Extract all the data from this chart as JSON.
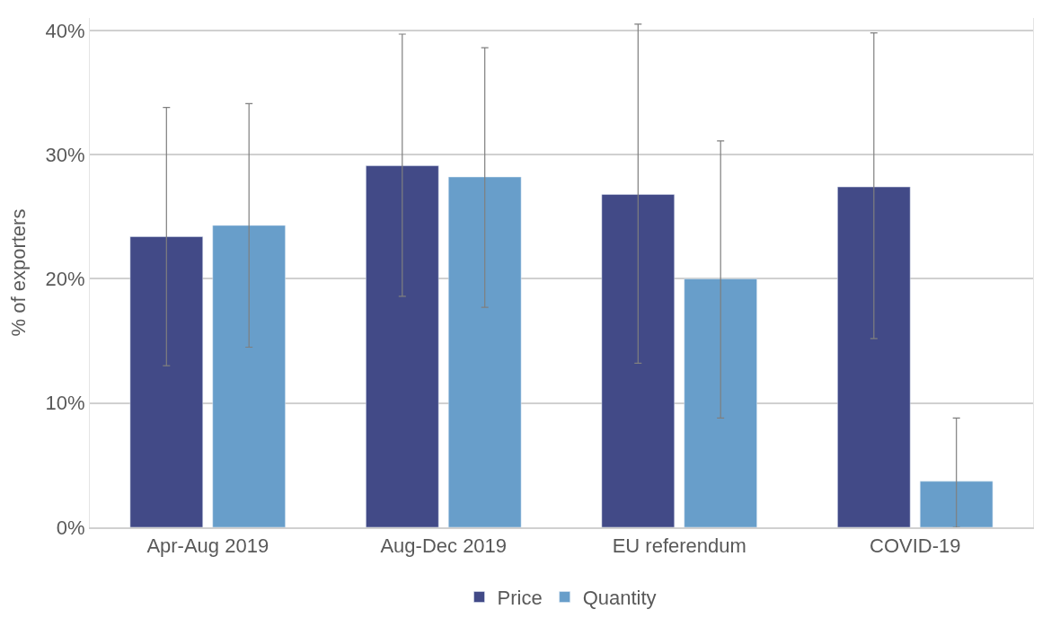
{
  "chart_data": {
    "type": "bar",
    "ylabel": "% of exporters",
    "categories": [
      "Apr-Aug 2019",
      "Aug-Dec 2019",
      "EU referendum",
      "COVID-19"
    ],
    "series": [
      {
        "name": "Price",
        "color": "#424a87",
        "values": [
          23.4,
          29.1,
          26.8,
          27.4
        ],
        "errors": [
          [
            13.0,
            33.8
          ],
          [
            18.6,
            39.7
          ],
          [
            13.2,
            40.5
          ],
          [
            15.2,
            39.8
          ]
        ]
      },
      {
        "name": "Quantity",
        "color": "#689eca",
        "values": [
          24.3,
          28.2,
          20.0,
          3.7
        ],
        "errors": [
          [
            14.5,
            34.1
          ],
          [
            17.7,
            38.6
          ],
          [
            8.8,
            31.1
          ],
          [
            0,
            8.8
          ]
        ]
      }
    ],
    "ylim": [
      0,
      41
    ],
    "yticks": [
      {
        "value": 0,
        "label": "0%"
      },
      {
        "value": 10,
        "label": "10%"
      },
      {
        "value": 20,
        "label": "20%"
      },
      {
        "value": 30,
        "label": "30%"
      },
      {
        "value": 40,
        "label": "40%"
      }
    ],
    "grid": "y",
    "legend": "bottom"
  }
}
